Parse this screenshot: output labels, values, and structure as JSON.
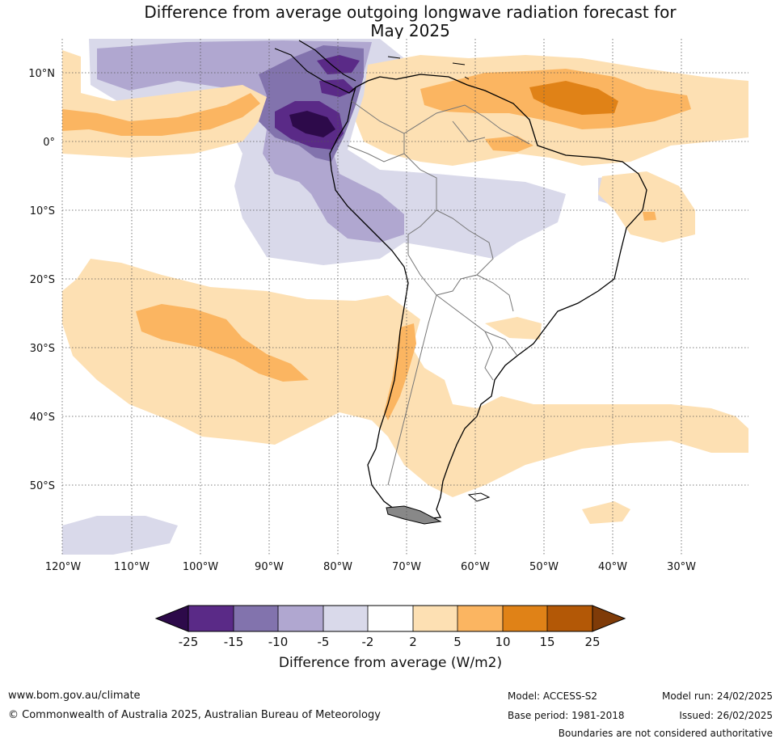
{
  "title_line1": "Difference from average outgoing longwave radiation forecast for",
  "title_line2": "May 2025",
  "lat_labels": [
    "10°N",
    "0°",
    "10°S",
    "20°S",
    "30°S",
    "40°S",
    "50°S"
  ],
  "lon_labels": [
    "120°W",
    "110°W",
    "100°W",
    "90°W",
    "80°W",
    "70°W",
    "60°W",
    "50°W",
    "40°W",
    "30°W"
  ],
  "colorbar": {
    "ticks": [
      "-25",
      "-15",
      "-10",
      "-5",
      "-2",
      "2",
      "5",
      "10",
      "15",
      "25"
    ],
    "colors": [
      "#2d0a4a",
      "#5a2a87",
      "#8273ad",
      "#b0a7d0",
      "#d9d9ea",
      "#ffffff",
      "#fde0b3",
      "#fbb561",
      "#e08217",
      "#b35806",
      "#7f3b08"
    ],
    "title": "Difference from average (W/m2)"
  },
  "footer": {
    "website": "www.bom.gov.au/climate",
    "copyright": "© Commonwealth of Australia 2025, Australian Bureau of Meteorology",
    "model": "Model: ACCESS-S2",
    "base_period": "Base period: 1981-2018",
    "model_run": "Model run: 24/02/2025",
    "issued": "Issued: 26/02/2025",
    "disclaimer": "Boundaries are not considered authoritative"
  }
}
